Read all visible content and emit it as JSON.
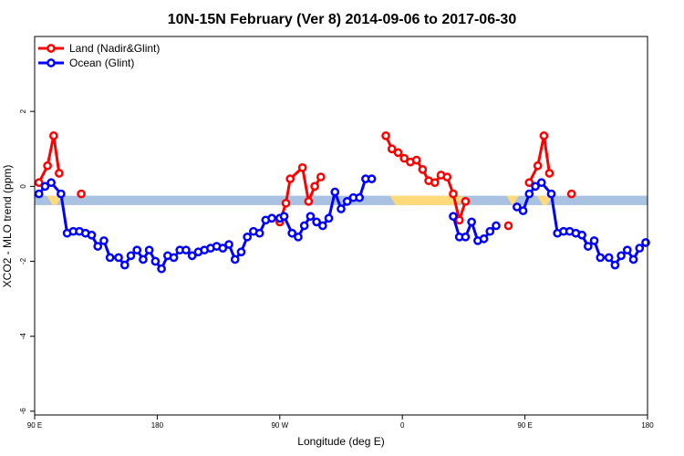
{
  "chart_data": {
    "type": "line",
    "title": "10N-15N February (Ver 8)   2014-09-06 to 2017-06-30",
    "xlabel": "Longitude (deg E)",
    "ylabel": "XCO2 - MLO trend (ppm)",
    "xlim": [
      0,
      1
    ],
    "ylim": [
      -6.1,
      4
    ],
    "x_ticks": [
      {
        "pos": 0.0,
        "label": "90 E"
      },
      {
        "pos": 0.2,
        "label": "180"
      },
      {
        "pos": 0.4,
        "label": "90 W"
      },
      {
        "pos": 0.6,
        "label": "0"
      },
      {
        "pos": 0.8,
        "label": "90 E"
      },
      {
        "pos": 1.0,
        "label": "180"
      }
    ],
    "y_ticks": [
      -6,
      -4,
      -2,
      0,
      2
    ],
    "band": {
      "y_min": -0.5,
      "y_max": -0.25,
      "color": "#a9c2e2",
      "highlight_color": "#ffd97a"
    },
    "legend_position": "top-left",
    "series": [
      {
        "name": "Land (Nadir&Glint)",
        "color": "#ff0000",
        "segments": [
          [
            [
              0.007,
              0.1
            ],
            [
              0.021,
              0.55
            ],
            [
              0.031,
              1.35
            ],
            [
              0.04,
              0.35
            ]
          ],
          [
            [
              0.076,
              -0.2
            ]
          ],
          [
            [
              0.4,
              -0.95
            ],
            [
              0.41,
              -0.45
            ],
            [
              0.417,
              0.2
            ],
            [
              0.437,
              0.5
            ],
            [
              0.447,
              -0.4
            ],
            [
              0.457,
              0.0
            ],
            [
              0.467,
              0.25
            ]
          ],
          [
            [
              0.573,
              1.35
            ],
            [
              0.583,
              1.0
            ],
            [
              0.593,
              0.9
            ],
            [
              0.603,
              0.75
            ],
            [
              0.613,
              0.65
            ],
            [
              0.623,
              0.7
            ],
            [
              0.633,
              0.45
            ],
            [
              0.643,
              0.15
            ],
            [
              0.653,
              0.1
            ],
            [
              0.663,
              0.3
            ],
            [
              0.673,
              0.25
            ],
            [
              0.683,
              -0.2
            ],
            [
              0.693,
              -0.9
            ],
            [
              0.703,
              -0.4
            ]
          ],
          [
            [
              0.773,
              -1.05
            ]
          ],
          [
            [
              0.807,
              0.1
            ],
            [
              0.821,
              0.55
            ],
            [
              0.831,
              1.35
            ],
            [
              0.84,
              0.35
            ]
          ],
          [
            [
              0.876,
              -0.2
            ]
          ]
        ]
      },
      {
        "name": "Ocean (Glint)",
        "color": "#0000ff",
        "segments": [
          [
            [
              0.007,
              -0.2
            ],
            [
              0.017,
              0.0
            ],
            [
              0.027,
              0.1
            ],
            [
              0.043,
              -0.2
            ],
            [
              0.053,
              -1.25
            ],
            [
              0.063,
              -1.2
            ],
            [
              0.073,
              -1.2
            ],
            [
              0.083,
              -1.25
            ],
            [
              0.093,
              -1.3
            ],
            [
              0.103,
              -1.6
            ],
            [
              0.113,
              -1.45
            ],
            [
              0.123,
              -1.9
            ],
            [
              0.137,
              -1.9
            ],
            [
              0.147,
              -2.1
            ],
            [
              0.157,
              -1.85
            ],
            [
              0.167,
              -1.7
            ],
            [
              0.177,
              -1.95
            ],
            [
              0.187,
              -1.7
            ],
            [
              0.197,
              -2.0
            ],
            [
              0.207,
              -2.2
            ],
            [
              0.217,
              -1.85
            ],
            [
              0.227,
              -1.9
            ],
            [
              0.237,
              -1.7
            ],
            [
              0.247,
              -1.7
            ],
            [
              0.257,
              -1.85
            ],
            [
              0.267,
              -1.75
            ],
            [
              0.277,
              -1.7
            ],
            [
              0.287,
              -1.65
            ],
            [
              0.297,
              -1.6
            ],
            [
              0.307,
              -1.65
            ],
            [
              0.317,
              -1.55
            ],
            [
              0.327,
              -1.95
            ],
            [
              0.337,
              -1.75
            ],
            [
              0.347,
              -1.35
            ],
            [
              0.357,
              -1.2
            ],
            [
              0.367,
              -1.25
            ],
            [
              0.377,
              -0.9
            ],
            [
              0.387,
              -0.85
            ],
            [
              0.4,
              -0.85
            ],
            [
              0.407,
              -0.8
            ],
            [
              0.42,
              -1.25
            ],
            [
              0.43,
              -1.35
            ],
            [
              0.44,
              -1.05
            ],
            [
              0.45,
              -0.8
            ],
            [
              0.46,
              -0.95
            ],
            [
              0.47,
              -1.05
            ],
            [
              0.48,
              -0.85
            ],
            [
              0.49,
              -0.15
            ],
            [
              0.5,
              -0.6
            ],
            [
              0.51,
              -0.4
            ],
            [
              0.52,
              -0.3
            ],
            [
              0.53,
              -0.3
            ],
            [
              0.54,
              0.2
            ],
            [
              0.55,
              0.2
            ]
          ],
          [
            [
              0.683,
              -0.8
            ],
            [
              0.693,
              -1.35
            ],
            [
              0.703,
              -1.35
            ],
            [
              0.713,
              -0.95
            ],
            [
              0.723,
              -1.45
            ],
            [
              0.733,
              -1.4
            ],
            [
              0.743,
              -1.2
            ],
            [
              0.753,
              -1.05
            ]
          ],
          [
            [
              0.787,
              -0.55
            ],
            [
              0.797,
              -0.65
            ],
            [
              0.807,
              -0.2
            ],
            [
              0.817,
              0.0
            ],
            [
              0.827,
              0.1
            ],
            [
              0.843,
              -0.2
            ],
            [
              0.853,
              -1.25
            ],
            [
              0.863,
              -1.2
            ],
            [
              0.873,
              -1.2
            ],
            [
              0.883,
              -1.25
            ],
            [
              0.893,
              -1.3
            ],
            [
              0.903,
              -1.6
            ],
            [
              0.913,
              -1.45
            ],
            [
              0.923,
              -1.9
            ],
            [
              0.937,
              -1.9
            ],
            [
              0.947,
              -2.1
            ],
            [
              0.957,
              -1.85
            ],
            [
              0.967,
              -1.7
            ],
            [
              0.977,
              -1.95
            ],
            [
              0.987,
              -1.65
            ],
            [
              0.997,
              -1.5
            ]
          ]
        ]
      }
    ]
  }
}
